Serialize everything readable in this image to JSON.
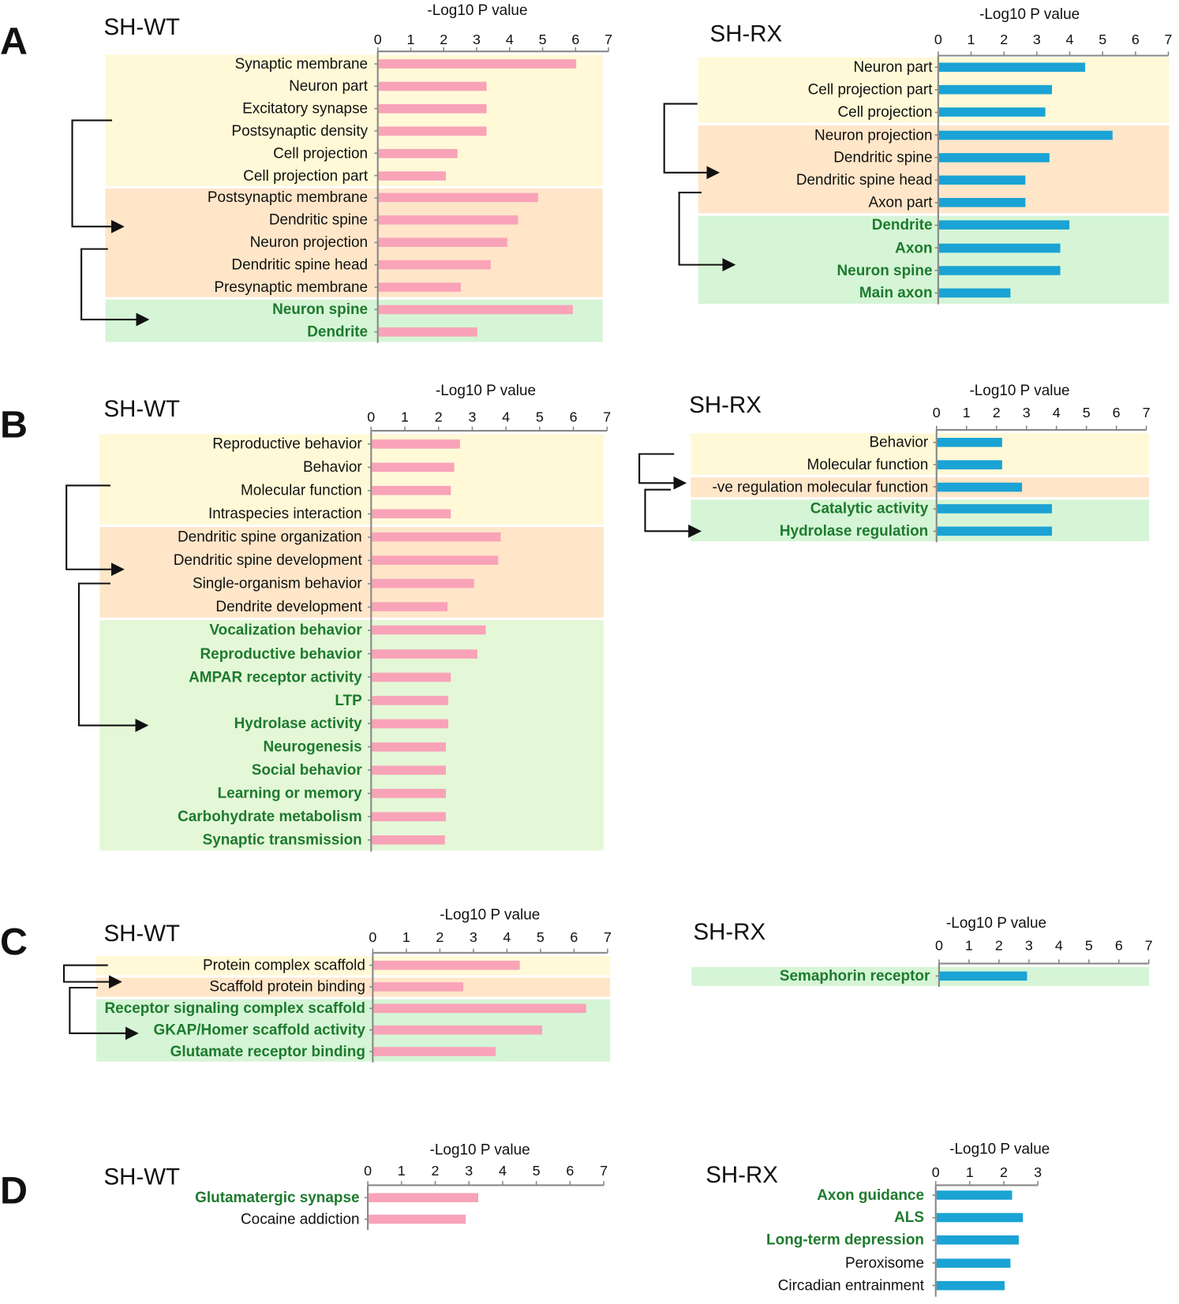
{
  "colors": {
    "wt_bar": "#F9A3B8",
    "rx_bar": "#1AA3D4",
    "group_yellow": "#FFF9D7",
    "group_orange": "#FFE6C9",
    "group_green": "#D5F5D6",
    "group_lime": "#E4F8D8",
    "highlight_text": "#1E7A2E"
  },
  "panels": [
    {
      "letter": "A"
    },
    {
      "letter": "B"
    },
    {
      "letter": "C"
    },
    {
      "letter": "D"
    }
  ],
  "chart_data": [
    {
      "id": "A-WT",
      "panel": "A",
      "type": "bar",
      "orientation": "horizontal",
      "title": "SH-WT",
      "xlabel": "-Log10 P value",
      "xlim": [
        0,
        7
      ],
      "ticks": [
        "0",
        "1",
        "2",
        "3",
        "4",
        "5",
        "6",
        "7"
      ],
      "series_color": "wt_bar",
      "groups": [
        {
          "color": "group_yellow",
          "rows": [
            {
              "label": "Synaptic membrane",
              "value": 6.0
            },
            {
              "label": "Neuron part",
              "value": 3.27
            },
            {
              "label": "Excitatory synapse",
              "value": 3.27
            },
            {
              "label": "Postsynaptic density",
              "value": 3.27
            },
            {
              "label": "Cell projection",
              "value": 2.4
            },
            {
              "label": "Cell projection part",
              "value": 2.04
            }
          ]
        },
        {
          "color": "group_orange",
          "rows": [
            {
              "label": "Postsynaptic membrane",
              "value": 4.84
            },
            {
              "label": "Dendritic spine",
              "value": 4.23
            },
            {
              "label": "Neuron projection",
              "value": 3.9
            },
            {
              "label": "Dendritic spine head",
              "value": 3.4
            },
            {
              "label": "Presynaptic membrane",
              "value": 2.5
            }
          ]
        },
        {
          "color": "group_green",
          "rows": [
            {
              "label": "Neuron spine",
              "value": 5.9,
              "highlighted": true
            },
            {
              "label": "Dendrite",
              "value": 3.0,
              "highlighted": true
            }
          ]
        }
      ]
    },
    {
      "id": "A-RX",
      "panel": "A",
      "type": "bar",
      "orientation": "horizontal",
      "title": "SH-RX",
      "xlabel": "-Log10 P value",
      "xlim": [
        0,
        7
      ],
      "ticks": [
        "0",
        "1",
        "2",
        "3",
        "4",
        "5",
        "6",
        "7"
      ],
      "series_color": "rx_bar",
      "groups": [
        {
          "color": "group_yellow",
          "rows": [
            {
              "label": "Neuron part",
              "value": 4.44
            },
            {
              "label": "Cell projection part",
              "value": 3.43
            },
            {
              "label": "Cell projection",
              "value": 3.23
            }
          ]
        },
        {
          "color": "group_orange",
          "rows": [
            {
              "label": "Neuron projection",
              "value": 5.28
            },
            {
              "label": "Dendritic spine",
              "value": 3.36
            },
            {
              "label": "Dendritic spine head",
              "value": 2.63
            },
            {
              "label": "Axon part",
              "value": 2.63
            }
          ]
        },
        {
          "color": "group_green",
          "rows": [
            {
              "label": "Dendrite",
              "value": 3.96,
              "highlighted": true
            },
            {
              "label": "Axon",
              "value": 3.69,
              "highlighted": true
            },
            {
              "label": "Neuron spine",
              "value": 3.69,
              "highlighted": true
            },
            {
              "label": "Main axon",
              "value": 2.17,
              "highlighted": true
            }
          ]
        }
      ]
    },
    {
      "id": "B-WT",
      "panel": "B",
      "type": "bar",
      "orientation": "horizontal",
      "title": "SH-WT",
      "xlabel": "-Log10 P value",
      "xlim": [
        0,
        7
      ],
      "ticks": [
        "0",
        "1",
        "2",
        "3",
        "4",
        "5",
        "6",
        "7"
      ],
      "series_color": "wt_bar",
      "groups": [
        {
          "color": "group_yellow",
          "rows": [
            {
              "label": "Reproductive behavior",
              "value": 2.6
            },
            {
              "label": "Behavior",
              "value": 2.44
            },
            {
              "label": "Molecular function",
              "value": 2.34
            },
            {
              "label": "Intraspecies interaction",
              "value": 2.34
            }
          ]
        },
        {
          "color": "group_orange",
          "rows": [
            {
              "label": "Dendritic spine organization",
              "value": 3.82
            },
            {
              "label": "Dendritic spine development",
              "value": 3.74
            },
            {
              "label": "Single-organism behavior",
              "value": 3.03
            },
            {
              "label": "Dendrite development",
              "value": 2.24
            }
          ]
        },
        {
          "color": "group_lime",
          "rows": [
            {
              "label": "Vocalization behavior",
              "value": 3.37,
              "highlighted": true
            },
            {
              "label": "Reproductive behavior",
              "value": 3.13,
              "highlighted": true
            },
            {
              "label": "AMPAR receptor activity",
              "value": 2.34,
              "highlighted": true
            },
            {
              "label": "LTP",
              "value": 2.27,
              "highlighted": true
            },
            {
              "label": "Hydrolase activity",
              "value": 2.27,
              "highlighted": true
            },
            {
              "label": "Neurogenesis",
              "value": 2.19,
              "highlighted": true
            },
            {
              "label": "Social behavior",
              "value": 2.19,
              "highlighted": true
            },
            {
              "label": "Learning or memory",
              "value": 2.19,
              "highlighted": true
            },
            {
              "label": "Carbohydrate metabolism",
              "value": 2.19,
              "highlighted": true
            },
            {
              "label": "Synaptic transmission",
              "value": 2.17,
              "highlighted": true
            }
          ]
        }
      ]
    },
    {
      "id": "B-RX",
      "panel": "B",
      "type": "bar",
      "orientation": "horizontal",
      "title": "SH-RX",
      "xlabel": "-Log10 P value",
      "xlim": [
        0,
        7
      ],
      "ticks": [
        "0",
        "1",
        "2",
        "3",
        "4",
        "5",
        "6",
        "7"
      ],
      "series_color": "rx_bar",
      "groups": [
        {
          "color": "group_yellow",
          "rows": [
            {
              "label": "Behavior",
              "value": 2.16
            },
            {
              "label": "Molecular function",
              "value": 2.16
            }
          ]
        },
        {
          "color": "group_orange",
          "rows": [
            {
              "label": "-ve regulation molecular function",
              "value": 2.83
            }
          ]
        },
        {
          "color": "group_green",
          "rows": [
            {
              "label": "Catalytic activity",
              "value": 3.82,
              "highlighted": true
            },
            {
              "label": "Hydrolase regulation",
              "value": 3.82,
              "highlighted": true
            }
          ]
        }
      ]
    },
    {
      "id": "C-WT",
      "panel": "C",
      "type": "bar",
      "orientation": "horizontal",
      "title": "SH-WT",
      "xlabel": "-Log10 P value",
      "xlim": [
        0,
        7
      ],
      "ticks": [
        "0",
        "1",
        "2",
        "3",
        "4",
        "5",
        "6",
        "7"
      ],
      "series_color": "wt_bar",
      "groups": [
        {
          "color": "group_yellow",
          "rows": [
            {
              "label": "Protein complex scaffold",
              "value": 4.36
            }
          ]
        },
        {
          "color": "group_orange",
          "rows": [
            {
              "label": "Scaffold protein binding",
              "value": 2.67
            }
          ]
        },
        {
          "color": "group_green",
          "rows": [
            {
              "label": "Receptor signaling complex scaffold",
              "value": 6.34,
              "highlighted": true
            },
            {
              "label": "GKAP/Homer scaffold activity",
              "value": 5.02,
              "highlighted": true
            },
            {
              "label": "Glutamate receptor binding",
              "value": 3.64,
              "highlighted": true
            }
          ]
        }
      ]
    },
    {
      "id": "C-RX",
      "panel": "C",
      "type": "bar",
      "orientation": "horizontal",
      "title": "SH-RX",
      "xlabel": "-Log10 P value",
      "xlim": [
        0,
        7
      ],
      "ticks": [
        "0",
        "1",
        "2",
        "3",
        "4",
        "5",
        "6",
        "7"
      ],
      "series_color": "rx_bar",
      "groups": [
        {
          "color": "group_green",
          "rows": [
            {
              "label": "Semaphorin receptor",
              "value": 2.9,
              "highlighted": true
            }
          ]
        }
      ]
    },
    {
      "id": "D-WT",
      "panel": "D",
      "type": "bar",
      "orientation": "horizontal",
      "title": "SH-WT",
      "xlabel": "-Log10 P value",
      "xlim": [
        0,
        7
      ],
      "ticks": [
        "0",
        "1",
        "2",
        "3",
        "4",
        "5",
        "6",
        "7"
      ],
      "series_color": "wt_bar",
      "groups": [
        {
          "color": null,
          "rows": [
            {
              "label": "Glutamatergic synapse",
              "value": 3.25,
              "highlighted": true
            },
            {
              "label": "Cocaine addiction",
              "value": 2.88
            }
          ]
        }
      ]
    },
    {
      "id": "D-RX",
      "panel": "D",
      "type": "bar",
      "orientation": "horizontal",
      "title": "SH-RX",
      "xlabel": "-Log10 P value",
      "xlim": [
        0,
        3
      ],
      "ticks": [
        "0",
        "1",
        "2",
        "3"
      ],
      "series_color": "rx_bar",
      "groups": [
        {
          "color": null,
          "rows": [
            {
              "label": "Axon guidance",
              "value": 2.22,
              "highlighted": true
            },
            {
              "label": "ALS",
              "value": 2.54,
              "highlighted": true
            },
            {
              "label": "Long-term depression",
              "value": 2.41,
              "highlighted": true
            },
            {
              "label": "Peroxisome",
              "value": 2.17
            },
            {
              "label": "Circadian entrainment",
              "value": 2.0
            }
          ]
        }
      ]
    }
  ]
}
